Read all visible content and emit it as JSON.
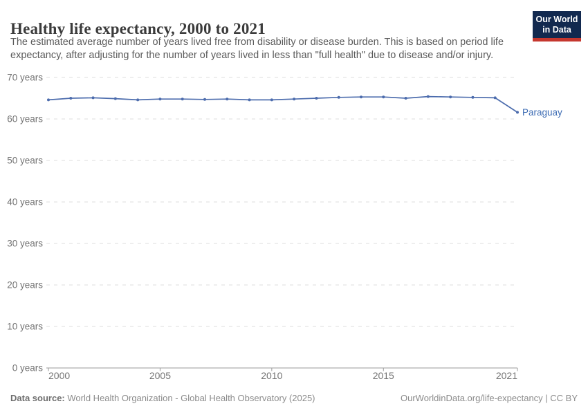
{
  "header": {
    "title": "Healthy life expectancy, 2000 to 2021",
    "subtitle_line1": "The estimated average number of years lived free from disability or disease burden. This is based on period life",
    "subtitle_line2": "expectancy, after adjusting for the number of years lived in less than \"full health\" due to disease and/or injury.",
    "logo_line1": "Our World",
    "logo_line2": "in Data"
  },
  "footer": {
    "datasource_label": "Data source:",
    "datasource_value": " World Health Organization - Global Health Observatory (2025)",
    "link": "OurWorldinData.org/life-expectancy | CC BY"
  },
  "colors": {
    "accent_line": "#4c6cad",
    "entity_label": "#3d6cb4",
    "gridline": "#dcdcdc",
    "axis_line": "#9a9a9a",
    "tick_text": "#737373",
    "title_text": "#3b3b3b",
    "subtitle_text": "#5a5a5a",
    "footer_text": "#8b8b8b",
    "logo_bg": "#12294f",
    "logo_red": "#c5372e"
  },
  "chart_data": {
    "type": "line",
    "title": "Healthy life expectancy, 2000 to 2021",
    "xlabel": "",
    "ylabel": "years",
    "ylim": [
      0,
      70
    ],
    "grid": true,
    "legend_position": "end-of-line",
    "x": [
      2000,
      2001,
      2002,
      2003,
      2004,
      2005,
      2006,
      2007,
      2008,
      2009,
      2010,
      2011,
      2012,
      2013,
      2014,
      2015,
      2016,
      2017,
      2018,
      2019,
      2020,
      2021
    ],
    "series": [
      {
        "name": "Paraguay",
        "color": "#4c6cad",
        "values": [
          64.6,
          65.0,
          65.1,
          64.9,
          64.6,
          64.8,
          64.8,
          64.7,
          64.8,
          64.6,
          64.6,
          64.8,
          65.0,
          65.2,
          65.3,
          65.3,
          65.0,
          65.4,
          65.3,
          65.2,
          65.1,
          61.6
        ]
      }
    ],
    "yticks": [
      {
        "v": 0,
        "label": "0 years"
      },
      {
        "v": 10,
        "label": "10 years"
      },
      {
        "v": 20,
        "label": "20 years"
      },
      {
        "v": 30,
        "label": "30 years"
      },
      {
        "v": 40,
        "label": "40 years"
      },
      {
        "v": 50,
        "label": "50 years"
      },
      {
        "v": 60,
        "label": "60 years"
      },
      {
        "v": 70,
        "label": "70 years"
      }
    ],
    "xticks": [
      {
        "v": 2000,
        "label": "2000"
      },
      {
        "v": 2005,
        "label": "2005"
      },
      {
        "v": 2010,
        "label": "2010"
      },
      {
        "v": 2015,
        "label": "2015"
      },
      {
        "v": 2021,
        "label": "2021"
      }
    ]
  }
}
